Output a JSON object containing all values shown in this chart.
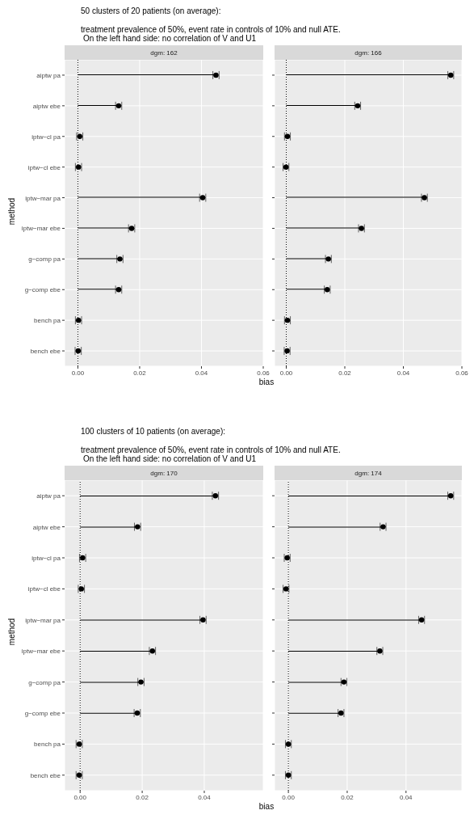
{
  "chart_data": [
    {
      "type": "bar",
      "orientation": "horizontal",
      "title": "dgm: 162",
      "annotations": [
        "50 clusters of 20 patients (on average):",
        "treatment prevalence of 50%, event rate in controls of 10% and null ATE.",
        "On the left hand side: no correlation of V and U1"
      ],
      "xlabel": "bias",
      "ylabel": "method",
      "categories": [
        "aiptw pa",
        "aiptw ebe",
        "iptw−cl pa",
        "iptw−cl ebe",
        "iptw−mar pa",
        "iptw−mar ebe",
        "g−comp pa",
        "g−comp ebe",
        "bench pa",
        "bench ebe"
      ],
      "series": [
        {
          "type": "bar",
          "color": "#000000",
          "values": [
            0.0447,
            0.0132,
            null,
            0.0002,
            0.0404,
            0.0174,
            0.0136,
            0.0132,
            0.0002,
            0.0001
          ]
        },
        {
          "type": "scatter",
          "color": "#000000",
          "values": [
            0.0447,
            0.0132,
            0.0006,
            0.0002,
            0.0404,
            0.0174,
            0.0136,
            0.0132,
            0.0002,
            0.0001
          ],
          "errors": [
            0.001,
            0.001,
            0.001,
            0.001,
            0.001,
            0.001,
            0.001,
            0.001,
            0.001,
            0.001
          ]
        }
      ],
      "xlim": [
        -0.0043,
        0.06
      ],
      "xticks": [
        {
          "value": 0,
          "label": "0.00"
        },
        {
          "value": 0.02,
          "label": "0.02"
        },
        {
          "value": 0.04,
          "label": "0.04"
        },
        {
          "value": 0.06,
          "label": "0.06"
        }
      ],
      "grid": true,
      "marker": "circle",
      "ref_lines": [
        {
          "axis": "x",
          "value": 0,
          "line_style": "dotted",
          "color": "#000000"
        }
      ]
    },
    {
      "type": "bar",
      "orientation": "horizontal",
      "title": "dgm: 166",
      "categories": [
        null,
        null,
        null,
        null,
        null,
        null,
        null,
        null,
        null,
        null
      ],
      "series": [
        {
          "type": "bar",
          "color": "#000000",
          "values": [
            0.0562,
            0.0244,
            0.0004,
            -0.0001,
            0.0472,
            0.0257,
            0.0144,
            0.014,
            0.0004,
            0.0003
          ]
        },
        {
          "type": "scatter",
          "color": "#000000",
          "values": [
            0.0562,
            0.0244,
            0.0004,
            -0.0001,
            0.0472,
            0.0257,
            0.0144,
            0.014,
            0.0004,
            0.0003
          ],
          "errors": [
            0.001,
            0.001,
            0.001,
            0.001,
            0.001,
            0.001,
            0.001,
            0.001,
            0.001,
            0.001
          ]
        }
      ],
      "xlim": [
        -0.004,
        0.06
      ],
      "xticks": [
        {
          "value": 0,
          "label": "0.00"
        },
        {
          "value": 0.02,
          "label": "0.02"
        },
        {
          "value": 0.04,
          "label": "0.04"
        },
        {
          "value": 0.06,
          "label": "0.06"
        }
      ],
      "grid": true,
      "marker": "circle",
      "tick_labels": "x",
      "ref_lines": [
        {
          "axis": "x",
          "value": 0,
          "line_style": "dotted",
          "color": "#000000"
        }
      ]
    },
    {
      "type": "bar",
      "orientation": "horizontal",
      "title": "dgm: 170",
      "annotations": [
        "100 clusters of 10 patients (on average):",
        "treatment prevalence of 50%, event rate in controls of 10% and null ATE.",
        "On the left hand side: no correlation of V and U1"
      ],
      "xlabel": "bias",
      "ylabel": "method",
      "categories": [
        "aiptw pa",
        "aiptw ebe",
        "iptw−cl pa",
        "iptw−cl ebe",
        "iptw−mar pa",
        "iptw−mar ebe",
        "g−comp pa",
        "g−comp ebe",
        "bench pa",
        "bench ebe"
      ],
      "series": [
        {
          "type": "bar",
          "color": "#000000",
          "values": [
            0.0436,
            0.0185,
            null,
            null,
            0.0396,
            0.0233,
            0.0196,
            0.0184,
            -0.0003,
            -0.0003
          ]
        },
        {
          "type": "scatter",
          "color": "#000000",
          "values": [
            0.0436,
            0.0185,
            0.0008,
            0.0004,
            0.0396,
            0.0233,
            0.0196,
            0.0184,
            -0.0003,
            -0.0003
          ],
          "errors": [
            0.001,
            0.001,
            0.001,
            0.001,
            0.001,
            0.001,
            0.001,
            0.001,
            0.001,
            0.001
          ]
        }
      ],
      "xlim": [
        -0.005,
        0.059
      ],
      "xticks": [
        {
          "value": 0,
          "label": "0.00"
        },
        {
          "value": 0.02,
          "label": "0.02"
        },
        {
          "value": 0.04,
          "label": "0.04"
        }
      ],
      "grid": true,
      "marker": "circle",
      "ref_lines": [
        {
          "axis": "x",
          "value": 0,
          "line_style": "dotted",
          "color": "#000000"
        }
      ]
    },
    {
      "type": "bar",
      "orientation": "horizontal",
      "title": "dgm: 174",
      "categories": [
        null,
        null,
        null,
        null,
        null,
        null,
        null,
        null,
        null,
        null
      ],
      "series": [
        {
          "type": "bar",
          "color": "#000000",
          "values": [
            0.0552,
            0.0322,
            -0.0004,
            null,
            0.0453,
            0.0311,
            0.0189,
            0.0179,
            0,
            0
          ]
        },
        {
          "type": "scatter",
          "color": "#000000",
          "values": [
            0.0552,
            0.0322,
            -0.0004,
            -0.0008,
            0.0453,
            0.0311,
            0.0189,
            0.0179,
            0,
            0
          ],
          "errors": [
            0.001,
            0.001,
            0.001,
            0.001,
            0.001,
            0.001,
            0.001,
            0.001,
            0.001,
            0.001
          ]
        }
      ],
      "xlim": [
        -0.0047,
        0.059
      ],
      "xticks": [
        {
          "value": 0,
          "label": "0.00"
        },
        {
          "value": 0.02,
          "label": "0.02"
        },
        {
          "value": 0.04,
          "label": "0.04"
        }
      ],
      "grid": true,
      "marker": "circle",
      "tick_labels": "x",
      "ref_lines": [
        {
          "axis": "x",
          "value": 0,
          "line_style": "dotted",
          "color": "#000000"
        }
      ]
    }
  ]
}
